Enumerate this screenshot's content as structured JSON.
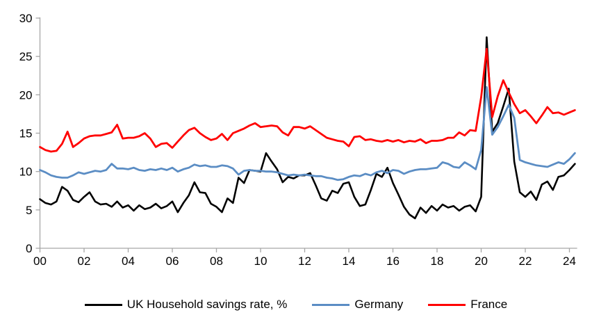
{
  "chart_data": {
    "type": "line",
    "x_start": 2000,
    "x_step": 0.25,
    "x_axis_end": 2024.35,
    "ylim": [
      0,
      30
    ],
    "y_ticks": [
      0,
      5,
      10,
      15,
      20,
      25,
      30
    ],
    "x_ticks": [
      {
        "value": 2000,
        "label": "00"
      },
      {
        "value": 2002,
        "label": "02"
      },
      {
        "value": 2004,
        "label": "04"
      },
      {
        "value": 2006,
        "label": "06"
      },
      {
        "value": 2008,
        "label": "08"
      },
      {
        "value": 2010,
        "label": "10"
      },
      {
        "value": 2012,
        "label": "12"
      },
      {
        "value": 2014,
        "label": "14"
      },
      {
        "value": 2016,
        "label": "16"
      },
      {
        "value": 2018,
        "label": "18"
      },
      {
        "value": 2020,
        "label": "20"
      },
      {
        "value": 2022,
        "label": "22"
      },
      {
        "value": 2024,
        "label": "24"
      }
    ],
    "grid": false,
    "legend_position": "bottom",
    "axis_color": "#a6a6a6",
    "series": [
      {
        "name": "UK Household savings rate, %",
        "color": "#000000",
        "width": 2.6,
        "values": [
          6.4,
          5.9,
          5.7,
          6.1,
          8.0,
          7.5,
          6.3,
          6.0,
          6.7,
          7.3,
          6.1,
          5.7,
          5.8,
          5.4,
          6.1,
          5.3,
          5.6,
          4.9,
          5.6,
          5.1,
          5.3,
          5.8,
          5.2,
          5.5,
          6.1,
          4.7,
          5.9,
          6.9,
          8.6,
          7.3,
          7.2,
          5.8,
          5.4,
          4.7,
          6.5,
          5.9,
          9.2,
          8.5,
          10.2,
          10.1,
          10.0,
          12.4,
          11.3,
          10.3,
          8.6,
          9.3,
          9.1,
          9.5,
          9.5,
          9.8,
          8.2,
          6.5,
          6.2,
          7.5,
          7.2,
          8.4,
          8.6,
          6.7,
          5.5,
          5.7,
          7.6,
          9.7,
          9.3,
          10.5,
          8.5,
          7.0,
          5.4,
          4.4,
          3.9,
          5.3,
          4.6,
          5.5,
          4.9,
          5.7,
          5.3,
          5.5,
          4.9,
          5.4,
          5.6,
          4.8,
          6.7,
          27.5,
          15.2,
          16.3,
          18.5,
          20.8,
          11.3,
          7.3,
          6.7,
          7.4,
          6.3,
          8.3,
          8.7,
          7.6,
          9.3,
          9.5,
          10.2,
          11.0
        ]
      },
      {
        "name": "Germany",
        "color": "#5b8dc4",
        "width": 2.8,
        "values": [
          10.2,
          9.9,
          9.5,
          9.3,
          9.2,
          9.2,
          9.5,
          9.9,
          9.7,
          9.9,
          10.1,
          10.0,
          10.2,
          11.0,
          10.4,
          10.4,
          10.3,
          10.5,
          10.2,
          10.1,
          10.3,
          10.2,
          10.4,
          10.2,
          10.5,
          10.0,
          10.3,
          10.5,
          10.9,
          10.7,
          10.8,
          10.6,
          10.6,
          10.8,
          10.7,
          10.4,
          9.6,
          10.1,
          10.2,
          10.1,
          10.1,
          10.0,
          10.0,
          9.9,
          9.7,
          9.5,
          9.6,
          9.5,
          9.6,
          9.5,
          9.4,
          9.4,
          9.2,
          9.1,
          8.9,
          9.0,
          9.3,
          9.5,
          9.4,
          9.7,
          9.5,
          9.9,
          10.1,
          9.8,
          10.2,
          10.1,
          9.7,
          10.0,
          10.2,
          10.3,
          10.3,
          10.4,
          10.5,
          11.2,
          11.0,
          10.6,
          10.5,
          11.2,
          10.8,
          10.3,
          12.8,
          21.0,
          14.8,
          15.8,
          17.2,
          18.7,
          17.0,
          11.5,
          11.2,
          11.0,
          10.8,
          10.7,
          10.6,
          10.9,
          11.2,
          11.0,
          11.6,
          12.4
        ]
      },
      {
        "name": "France",
        "color": "#ff0000",
        "width": 2.8,
        "values": [
          13.2,
          12.8,
          12.6,
          12.7,
          13.6,
          15.2,
          13.2,
          13.7,
          14.3,
          14.6,
          14.7,
          14.7,
          14.9,
          15.1,
          16.1,
          14.3,
          14.4,
          14.4,
          14.6,
          15.0,
          14.3,
          13.2,
          13.6,
          13.7,
          13.1,
          13.9,
          14.7,
          15.4,
          15.7,
          15.0,
          14.5,
          14.1,
          14.3,
          14.9,
          14.1,
          15.0,
          15.3,
          15.6,
          16.0,
          16.3,
          15.8,
          15.9,
          16.0,
          15.9,
          15.1,
          14.7,
          15.8,
          15.8,
          15.6,
          15.9,
          15.4,
          14.9,
          14.4,
          14.2,
          14.0,
          13.9,
          13.3,
          14.5,
          14.6,
          14.1,
          14.2,
          14.0,
          13.9,
          14.1,
          13.9,
          14.1,
          13.8,
          14.0,
          13.9,
          14.2,
          13.7,
          14.0,
          14.0,
          14.1,
          14.4,
          14.4,
          15.1,
          14.7,
          15.4,
          15.3,
          19.7,
          26.0,
          17.1,
          19.8,
          21.9,
          20.3,
          18.8,
          17.6,
          18.0,
          17.2,
          16.3,
          17.3,
          18.4,
          17.6,
          17.7,
          17.4,
          17.7,
          18.0
        ]
      }
    ]
  },
  "legend": {
    "items": [
      {
        "label": "UK Household savings rate, %"
      },
      {
        "label": "Germany"
      },
      {
        "label": "France"
      }
    ]
  }
}
